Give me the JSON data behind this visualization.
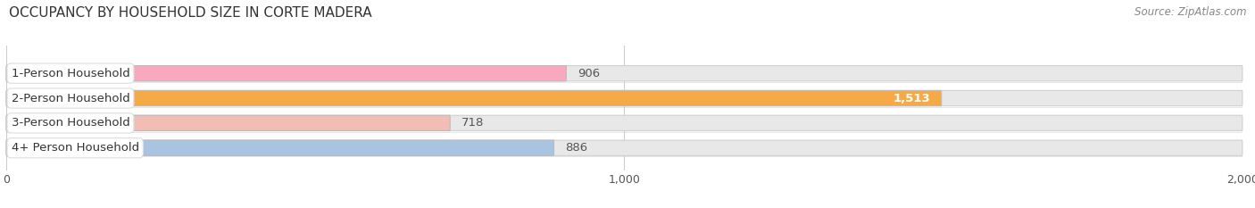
{
  "title": "OCCUPANCY BY HOUSEHOLD SIZE IN CORTE MADERA",
  "source": "Source: ZipAtlas.com",
  "categories": [
    "1-Person Household",
    "2-Person Household",
    "3-Person Household",
    "4+ Person Household"
  ],
  "values": [
    906,
    1513,
    718,
    886
  ],
  "bar_colors": [
    "#f9a8be",
    "#f5a947",
    "#f2bdb5",
    "#a8c4e0"
  ],
  "bg_bar_color": "#e8e8e8",
  "xlim_max": 2000,
  "xticks": [
    0,
    1000,
    2000
  ],
  "xtick_labels": [
    "0",
    "1,000",
    "2,000"
  ],
  "label_fontsize": 9.5,
  "title_fontsize": 11,
  "source_fontsize": 8.5,
  "bar_height": 0.62,
  "fig_bg": "#ffffff",
  "value_colors": [
    "#555555",
    "#ffffff",
    "#555555",
    "#555555"
  ],
  "value_fontweight": [
    "normal",
    "bold",
    "normal",
    "normal"
  ]
}
